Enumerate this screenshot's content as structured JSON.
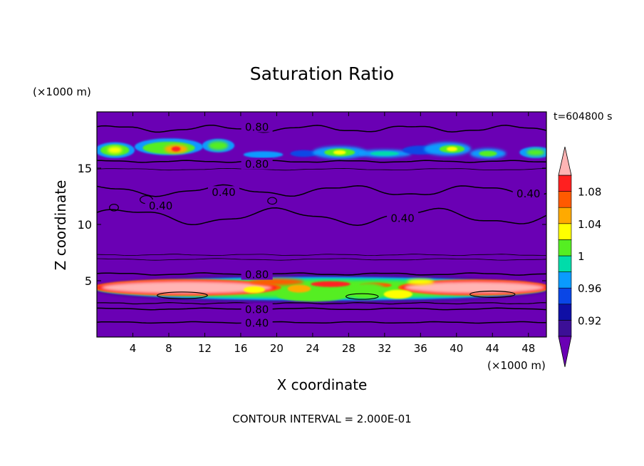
{
  "chart_data": {
    "type": "heatmap",
    "title": "Saturation Ratio",
    "xlabel": "X coordinate",
    "ylabel": "Z coordinate",
    "x_unit": "(×1000 m)",
    "y_unit": "(×1000 m)",
    "time_label": "t=604800 s",
    "footer": "CONTOUR INTERVAL = 2.000E-01",
    "xlim": [
      0,
      50
    ],
    "ylim": [
      0,
      20
    ],
    "x_ticks": [
      4,
      8,
      12,
      16,
      20,
      24,
      28,
      32,
      36,
      40,
      44,
      48
    ],
    "x_tick_labels": [
      "4",
      "8",
      "12",
      "16",
      "20",
      "24",
      "28",
      "32",
      "36",
      "40",
      "44",
      "48"
    ],
    "y_ticks": [
      5,
      10,
      15
    ],
    "y_tick_labels": [
      "5",
      "10",
      "15"
    ],
    "colorbar": {
      "levels": [
        0.9,
        0.92,
        0.94,
        0.96,
        0.98,
        1.0,
        1.02,
        1.04,
        1.06,
        1.08,
        1.1
      ],
      "colors": [
        "#3c0f96",
        "#0f0fa5",
        "#0a46e6",
        "#0a9bff",
        "#00dcaa",
        "#55ee22",
        "#ffff00",
        "#ffaa00",
        "#ff5a00",
        "#ff2020",
        "#ffb4b4"
      ],
      "under_color": "#6a00b4",
      "labeled_values": [
        0.92,
        0.96,
        1,
        1.04,
        1.08
      ],
      "labels": [
        "0.92",
        "0.96",
        "1",
        "1.04",
        "1.08"
      ]
    },
    "background_color": "#6a00b4",
    "contour_labels": [
      {
        "x": 17.8,
        "y": 18.7,
        "text": "0.80"
      },
      {
        "x": 17.8,
        "y": 15.4,
        "text": "0.80"
      },
      {
        "x": 14.1,
        "y": 12.9,
        "text": "0.40"
      },
      {
        "x": 7.1,
        "y": 11.7,
        "text": "0.40"
      },
      {
        "x": 34.0,
        "y": 10.6,
        "text": "0.40"
      },
      {
        "x": 48.0,
        "y": 12.8,
        "text": "0.40"
      },
      {
        "x": 17.8,
        "y": 5.6,
        "text": "0.80"
      },
      {
        "x": 17.8,
        "y": 2.5,
        "text": "0.80"
      },
      {
        "x": 17.8,
        "y": 1.3,
        "text": "0.40"
      }
    ]
  }
}
